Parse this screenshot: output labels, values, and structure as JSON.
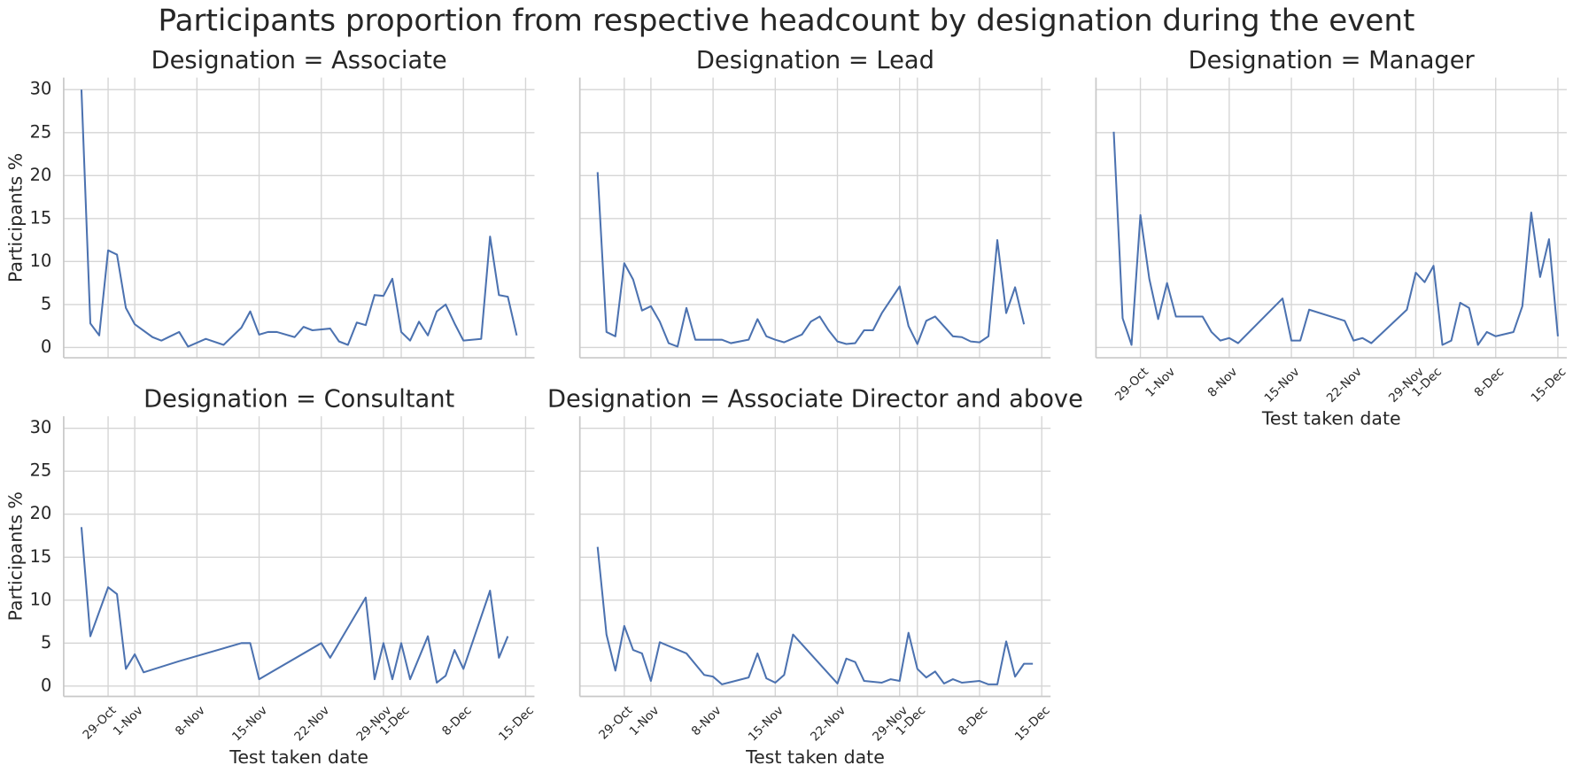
{
  "title": "Participants proportion from respective headcount by designation during the event",
  "chart_data": [
    {
      "type": "line",
      "title": "Designation = Associate",
      "ylabel": "Participants %",
      "color": "#4c72b0",
      "grid": true,
      "xlim": [
        "24-Oct",
        "16-Dec"
      ],
      "ylim": [
        -1.2,
        31.4
      ],
      "yticks": [
        0,
        5,
        10,
        15,
        20,
        25,
        30
      ],
      "xticks": [
        "29-Oct",
        "1-Nov",
        "8-Nov",
        "15-Nov",
        "22-Nov",
        "29-Nov",
        "1-Dec",
        "8-Dec",
        "15-Dec"
      ],
      "x": [
        "26-Oct",
        "27-Oct",
        "28-Oct",
        "29-Oct",
        "30-Oct",
        "31-Oct",
        "1-Nov",
        "3-Nov",
        "4-Nov",
        "6-Nov",
        "7-Nov",
        "9-Nov",
        "11-Nov",
        "13-Nov",
        "14-Nov",
        "15-Nov",
        "16-Nov",
        "17-Nov",
        "19-Nov",
        "20-Nov",
        "21-Nov",
        "23-Nov",
        "24-Nov",
        "25-Nov",
        "26-Nov",
        "27-Nov",
        "28-Nov",
        "29-Nov",
        "30-Nov",
        "1-Dec",
        "2-Dec",
        "3-Dec",
        "4-Dec",
        "5-Dec",
        "6-Dec",
        "7-Dec",
        "8-Dec",
        "10-Dec",
        "11-Dec",
        "12-Dec",
        "13-Dec",
        "14-Dec"
      ],
      "values": [
        30,
        2.8,
        1.4,
        11.3,
        10.8,
        4.6,
        2.7,
        1.2,
        0.8,
        1.8,
        0.1,
        1.0,
        0.3,
        2.3,
        4.2,
        1.5,
        1.8,
        1.8,
        1.2,
        2.4,
        2.0,
        2.2,
        0.7,
        0.3,
        2.9,
        2.6,
        6.1,
        6.0,
        8.0,
        1.8,
        0.8,
        3.0,
        1.4,
        4.2,
        5.0,
        2.8,
        0.8,
        1.0,
        12.9,
        6.1,
        5.9,
        1.4
      ]
    },
    {
      "type": "line",
      "title": "Designation = Lead",
      "color": "#4c72b0",
      "grid": true,
      "xlim": [
        "24-Oct",
        "16-Dec"
      ],
      "ylim": [
        -1.2,
        31.4
      ],
      "yticks": [
        0,
        5,
        10,
        15,
        20,
        25,
        30
      ],
      "xticks": [
        "29-Oct",
        "1-Nov",
        "8-Nov",
        "15-Nov",
        "22-Nov",
        "29-Nov",
        "1-Dec",
        "8-Dec",
        "15-Dec"
      ],
      "x": [
        "26-Oct",
        "27-Oct",
        "28-Oct",
        "29-Oct",
        "30-Oct",
        "31-Oct",
        "1-Nov",
        "2-Nov",
        "3-Nov",
        "4-Nov",
        "5-Nov",
        "6-Nov",
        "9-Nov",
        "10-Nov",
        "12-Nov",
        "13-Nov",
        "14-Nov",
        "15-Nov",
        "16-Nov",
        "18-Nov",
        "19-Nov",
        "20-Nov",
        "21-Nov",
        "22-Nov",
        "23-Nov",
        "24-Nov",
        "25-Nov",
        "26-Nov",
        "27-Nov",
        "29-Nov",
        "30-Nov",
        "1-Dec",
        "2-Dec",
        "3-Dec",
        "5-Dec",
        "6-Dec",
        "7-Dec",
        "8-Dec",
        "9-Dec",
        "10-Dec",
        "11-Dec",
        "12-Dec",
        "13-Dec"
      ],
      "values": [
        20.4,
        1.8,
        1.3,
        9.8,
        7.9,
        4.3,
        4.8,
        3.0,
        0.5,
        0.1,
        4.6,
        0.9,
        0.9,
        0.5,
        0.9,
        3.3,
        1.3,
        0.9,
        0.6,
        1.5,
        3.0,
        3.6,
        2.0,
        0.7,
        0.4,
        0.5,
        2.0,
        2.0,
        4.0,
        7.1,
        2.5,
        0.4,
        3.1,
        3.6,
        1.3,
        1.2,
        0.7,
        0.6,
        1.3,
        12.5,
        4.0,
        7.0,
        2.7
      ]
    },
    {
      "type": "line",
      "title": "Designation = Manager",
      "xlabel": "Test taken date",
      "color": "#4c72b0",
      "grid": true,
      "xlim": [
        "24-Oct",
        "16-Dec"
      ],
      "ylim": [
        -1.2,
        31.4
      ],
      "yticks": [
        0,
        5,
        10,
        15,
        20,
        25,
        30
      ],
      "xticks": [
        "29-Oct",
        "1-Nov",
        "8-Nov",
        "15-Nov",
        "22-Nov",
        "29-Nov",
        "1-Dec",
        "8-Dec",
        "15-Dec"
      ],
      "x": [
        "26-Oct",
        "27-Oct",
        "28-Oct",
        "29-Oct",
        "30-Oct",
        "31-Oct",
        "1-Nov",
        "2-Nov",
        "5-Nov",
        "6-Nov",
        "7-Nov",
        "8-Nov",
        "9-Nov",
        "14-Nov",
        "15-Nov",
        "16-Nov",
        "17-Nov",
        "21-Nov",
        "22-Nov",
        "23-Nov",
        "24-Nov",
        "28-Nov",
        "29-Nov",
        "30-Nov",
        "1-Dec",
        "2-Dec",
        "3-Dec",
        "4-Dec",
        "5-Dec",
        "6-Dec",
        "7-Dec",
        "8-Dec",
        "10-Dec",
        "11-Dec",
        "12-Dec",
        "13-Dec",
        "14-Dec",
        "15-Dec"
      ],
      "values": [
        25.1,
        3.4,
        0.3,
        15.4,
        8.0,
        3.3,
        7.5,
        3.6,
        3.6,
        1.8,
        0.8,
        1.1,
        0.5,
        5.7,
        0.8,
        0.8,
        4.4,
        3.1,
        0.8,
        1.1,
        0.5,
        4.4,
        8.7,
        7.6,
        9.5,
        0.3,
        0.8,
        5.2,
        4.6,
        0.3,
        1.8,
        1.3,
        1.8,
        4.8,
        15.7,
        8.2,
        12.6,
        1.3
      ]
    },
    {
      "type": "line",
      "title": "Designation = Consultant",
      "ylabel": "Participants %",
      "xlabel": "Test taken date",
      "color": "#4c72b0",
      "grid": true,
      "xlim": [
        "24-Oct",
        "16-Dec"
      ],
      "ylim": [
        -1.2,
        31.4
      ],
      "yticks": [
        0,
        5,
        10,
        15,
        20,
        25,
        30
      ],
      "xticks": [
        "29-Oct",
        "1-Nov",
        "8-Nov",
        "15-Nov",
        "22-Nov",
        "29-Nov",
        "1-Dec",
        "8-Dec",
        "15-Dec"
      ],
      "x": [
        "26-Oct",
        "27-Oct",
        "29-Oct",
        "30-Oct",
        "31-Oct",
        "1-Nov",
        "2-Nov",
        "6-Nov",
        "13-Nov",
        "14-Nov",
        "15-Nov",
        "22-Nov",
        "23-Nov",
        "27-Nov",
        "28-Nov",
        "29-Nov",
        "30-Nov",
        "1-Dec",
        "2-Dec",
        "4-Dec",
        "5-Dec",
        "6-Dec",
        "7-Dec",
        "8-Dec",
        "11-Dec",
        "12-Dec",
        "13-Dec"
      ],
      "values": [
        18.5,
        5.8,
        11.5,
        10.7,
        2.0,
        3.7,
        1.6,
        2.9,
        5.0,
        5.0,
        0.8,
        5.0,
        3.3,
        10.3,
        0.8,
        5.0,
        0.8,
        5.0,
        0.8,
        5.8,
        0.4,
        1.2,
        4.2,
        2.0,
        11.1,
        3.3,
        5.8
      ]
    },
    {
      "type": "line",
      "title": "Designation = Associate Director and above",
      "xlabel": "Test taken date",
      "color": "#4c72b0",
      "grid": true,
      "xlim": [
        "24-Oct",
        "16-Dec"
      ],
      "ylim": [
        -1.2,
        31.4
      ],
      "yticks": [
        0,
        5,
        10,
        15,
        20,
        25,
        30
      ],
      "xticks": [
        "29-Oct",
        "1-Nov",
        "8-Nov",
        "15-Nov",
        "22-Nov",
        "29-Nov",
        "1-Dec",
        "8-Dec",
        "15-Dec"
      ],
      "x": [
        "26-Oct",
        "27-Oct",
        "28-Oct",
        "29-Oct",
        "30-Oct",
        "31-Oct",
        "1-Nov",
        "2-Nov",
        "5-Nov",
        "7-Nov",
        "8-Nov",
        "9-Nov",
        "12-Nov",
        "13-Nov",
        "14-Nov",
        "15-Nov",
        "16-Nov",
        "17-Nov",
        "22-Nov",
        "23-Nov",
        "24-Nov",
        "25-Nov",
        "27-Nov",
        "28-Nov",
        "29-Nov",
        "30-Nov",
        "1-Dec",
        "2-Dec",
        "3-Dec",
        "4-Dec",
        "5-Dec",
        "6-Dec",
        "8-Dec",
        "9-Dec",
        "10-Dec",
        "11-Dec",
        "12-Dec",
        "13-Dec",
        "14-Dec"
      ],
      "values": [
        16.2,
        6.0,
        1.8,
        7.0,
        4.2,
        3.8,
        0.6,
        5.1,
        3.8,
        1.3,
        1.1,
        0.2,
        1.0,
        3.8,
        0.9,
        0.4,
        1.3,
        6.0,
        0.3,
        3.2,
        2.8,
        0.6,
        0.4,
        0.8,
        0.6,
        6.2,
        2.0,
        1.0,
        1.7,
        0.3,
        0.8,
        0.4,
        0.6,
        0.2,
        0.2,
        5.2,
        1.1,
        2.6,
        2.6
      ]
    }
  ]
}
